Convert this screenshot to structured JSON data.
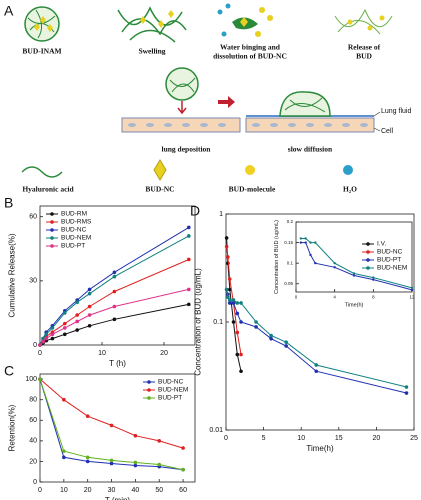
{
  "panel_a": {
    "label": "A",
    "stages": [
      "BUD-INAM",
      "Swelling",
      [
        "Water binging and",
        "dissolution of BUD-NC"
      ],
      [
        "Release of",
        "BUD"
      ]
    ],
    "steps": [
      "lung deposition",
      "slow diffusion"
    ],
    "layers": [
      "Lung fluid",
      "Cell"
    ],
    "legend": [
      "Hyaluronic acid",
      "BUD-NC",
      "BUD-molecule",
      "H₂O"
    ]
  },
  "chart_data": [
    {
      "type": "line",
      "panel": "B",
      "xlabel": "T (h)",
      "ylabel": "Cumulative Release(%)",
      "x": [
        0,
        0.5,
        1,
        2,
        4,
        6,
        8,
        12,
        24
      ],
      "xlim": [
        0,
        25
      ],
      "xticks": [
        0,
        10,
        20
      ],
      "ylim": [
        0,
        65
      ],
      "yticks": [
        0,
        30,
        60
      ],
      "legend": "upper left",
      "series": [
        {
          "name": "BUD-RM",
          "color": "#111111",
          "values": [
            0,
            1,
            2,
            3,
            5,
            7,
            9,
            12,
            19
          ]
        },
        {
          "name": "BUD-RMS",
          "color": "#e02020",
          "values": [
            0,
            2,
            4,
            6,
            10,
            14,
            18,
            25,
            40
          ]
        },
        {
          "name": "BUD-NC",
          "color": "#2030b0",
          "values": [
            0,
            3,
            6,
            9,
            16,
            21,
            26,
            34,
            55
          ]
        },
        {
          "name": "BUD-NEM",
          "color": "#108080",
          "values": [
            0,
            3,
            5,
            8,
            15,
            20,
            24,
            32,
            51
          ]
        },
        {
          "name": "BUD-PT",
          "color": "#e0308a",
          "values": [
            0,
            1.5,
            3,
            5,
            8,
            11,
            14,
            18,
            26
          ]
        }
      ]
    },
    {
      "type": "line",
      "panel": "C",
      "xlabel": "T (min)",
      "ylabel": "Retention(%)",
      "x": [
        0,
        10,
        20,
        30,
        40,
        50,
        60
      ],
      "xlim": [
        0,
        65
      ],
      "xticks": [
        0,
        10,
        20,
        30,
        40,
        50,
        60
      ],
      "ylim": [
        0,
        105
      ],
      "yticks": [
        0,
        20,
        40,
        60,
        80,
        100
      ],
      "legend": "upper right",
      "series": [
        {
          "name": "BUD-NC",
          "color": "#2030b0",
          "values": [
            100,
            24,
            20,
            18,
            16,
            15,
            12
          ]
        },
        {
          "name": "BUD-NEM",
          "color": "#e02020",
          "values": [
            100,
            80,
            64,
            55,
            45,
            40,
            33
          ]
        },
        {
          "name": "BUD-PT",
          "color": "#60b020",
          "values": [
            100,
            30,
            24,
            21,
            19,
            17,
            12
          ]
        }
      ]
    },
    {
      "type": "line",
      "panel": "D",
      "xlabel": "Time(h)",
      "ylabel": "Concentration of BUD (ug/mL)",
      "log_y": true,
      "xlim": [
        0,
        25
      ],
      "xticks": [
        0,
        5,
        10,
        15,
        20,
        25
      ],
      "ylim": [
        0.01,
        1
      ],
      "yticks": [
        0.01,
        0.1,
        1
      ],
      "legend": "upper right",
      "series": [
        {
          "name": "I.V.",
          "color": "#111111",
          "x": [
            0.083,
            0.25,
            0.5,
            1,
            1.5,
            2
          ],
          "values": [
            0.6,
            0.35,
            0.2,
            0.1,
            0.05,
            0.035
          ]
        },
        {
          "name": "BUD-NC",
          "color": "#e02020",
          "x": [
            0.083,
            0.25,
            0.5,
            1,
            1.5,
            2
          ],
          "values": [
            0.5,
            0.4,
            0.25,
            0.15,
            0.08,
            0.05
          ]
        },
        {
          "name": "BUD-PT",
          "color": "#2030b0",
          "x": [
            0.083,
            0.25,
            0.5,
            1,
            1.5,
            2,
            4,
            6,
            8,
            12,
            24
          ],
          "values": [
            0.2,
            0.18,
            0.15,
            0.15,
            0.12,
            0.1,
            0.09,
            0.07,
            0.06,
            0.035,
            0.022
          ]
        },
        {
          "name": "BUD-NEM",
          "color": "#108080",
          "x": [
            0.083,
            0.25,
            0.5,
            1,
            1.5,
            2,
            4,
            6,
            8,
            12,
            24
          ],
          "values": [
            0.2,
            0.17,
            0.16,
            0.16,
            0.15,
            0.15,
            0.1,
            0.075,
            0.065,
            0.04,
            0.025
          ]
        }
      ]
    },
    {
      "type": "line",
      "xlabel": "Time(h)",
      "ylabel": "Concentration of BUD (ug/mL)",
      "x": [
        0.5,
        1,
        1.5,
        2,
        4,
        6,
        8,
        12
      ],
      "xlim": [
        0,
        12
      ],
      "xticks": [
        0,
        4,
        8,
        12
      ],
      "ylim": [
        0.03,
        0.2
      ],
      "yticks": [
        0.05,
        0.1,
        0.15,
        0.2
      ],
      "series": [
        {
          "name": "BUD-PT",
          "color": "#2030b0",
          "values": [
            0.15,
            0.15,
            0.12,
            0.1,
            0.09,
            0.07,
            0.06,
            0.035
          ]
        },
        {
          "name": "BUD-NEM",
          "color": "#108080",
          "values": [
            0.16,
            0.16,
            0.15,
            0.15,
            0.1,
            0.075,
            0.065,
            0.04
          ]
        }
      ]
    }
  ]
}
